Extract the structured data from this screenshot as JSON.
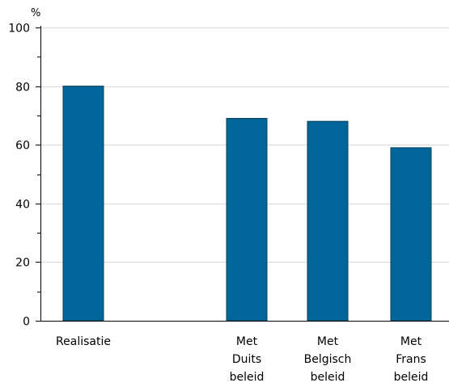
{
  "chart_data": {
    "type": "bar",
    "y_unit": "%",
    "ylim": [
      0,
      100
    ],
    "y_ticks": [
      0,
      20,
      40,
      60,
      80,
      100
    ],
    "y_minor_ticks": [
      10,
      30,
      50,
      70,
      90
    ],
    "grid": true,
    "bar_color": "#006699",
    "categories": [
      {
        "label_lines": [
          "Realisatie"
        ]
      },
      {
        "label_lines": [
          "Met",
          "Duits",
          "beleid"
        ]
      },
      {
        "label_lines": [
          "Met",
          "Belgisch",
          "beleid"
        ]
      },
      {
        "label_lines": [
          "Met",
          "Frans",
          "beleid"
        ]
      }
    ],
    "values": [
      80,
      69,
      68,
      59
    ]
  }
}
